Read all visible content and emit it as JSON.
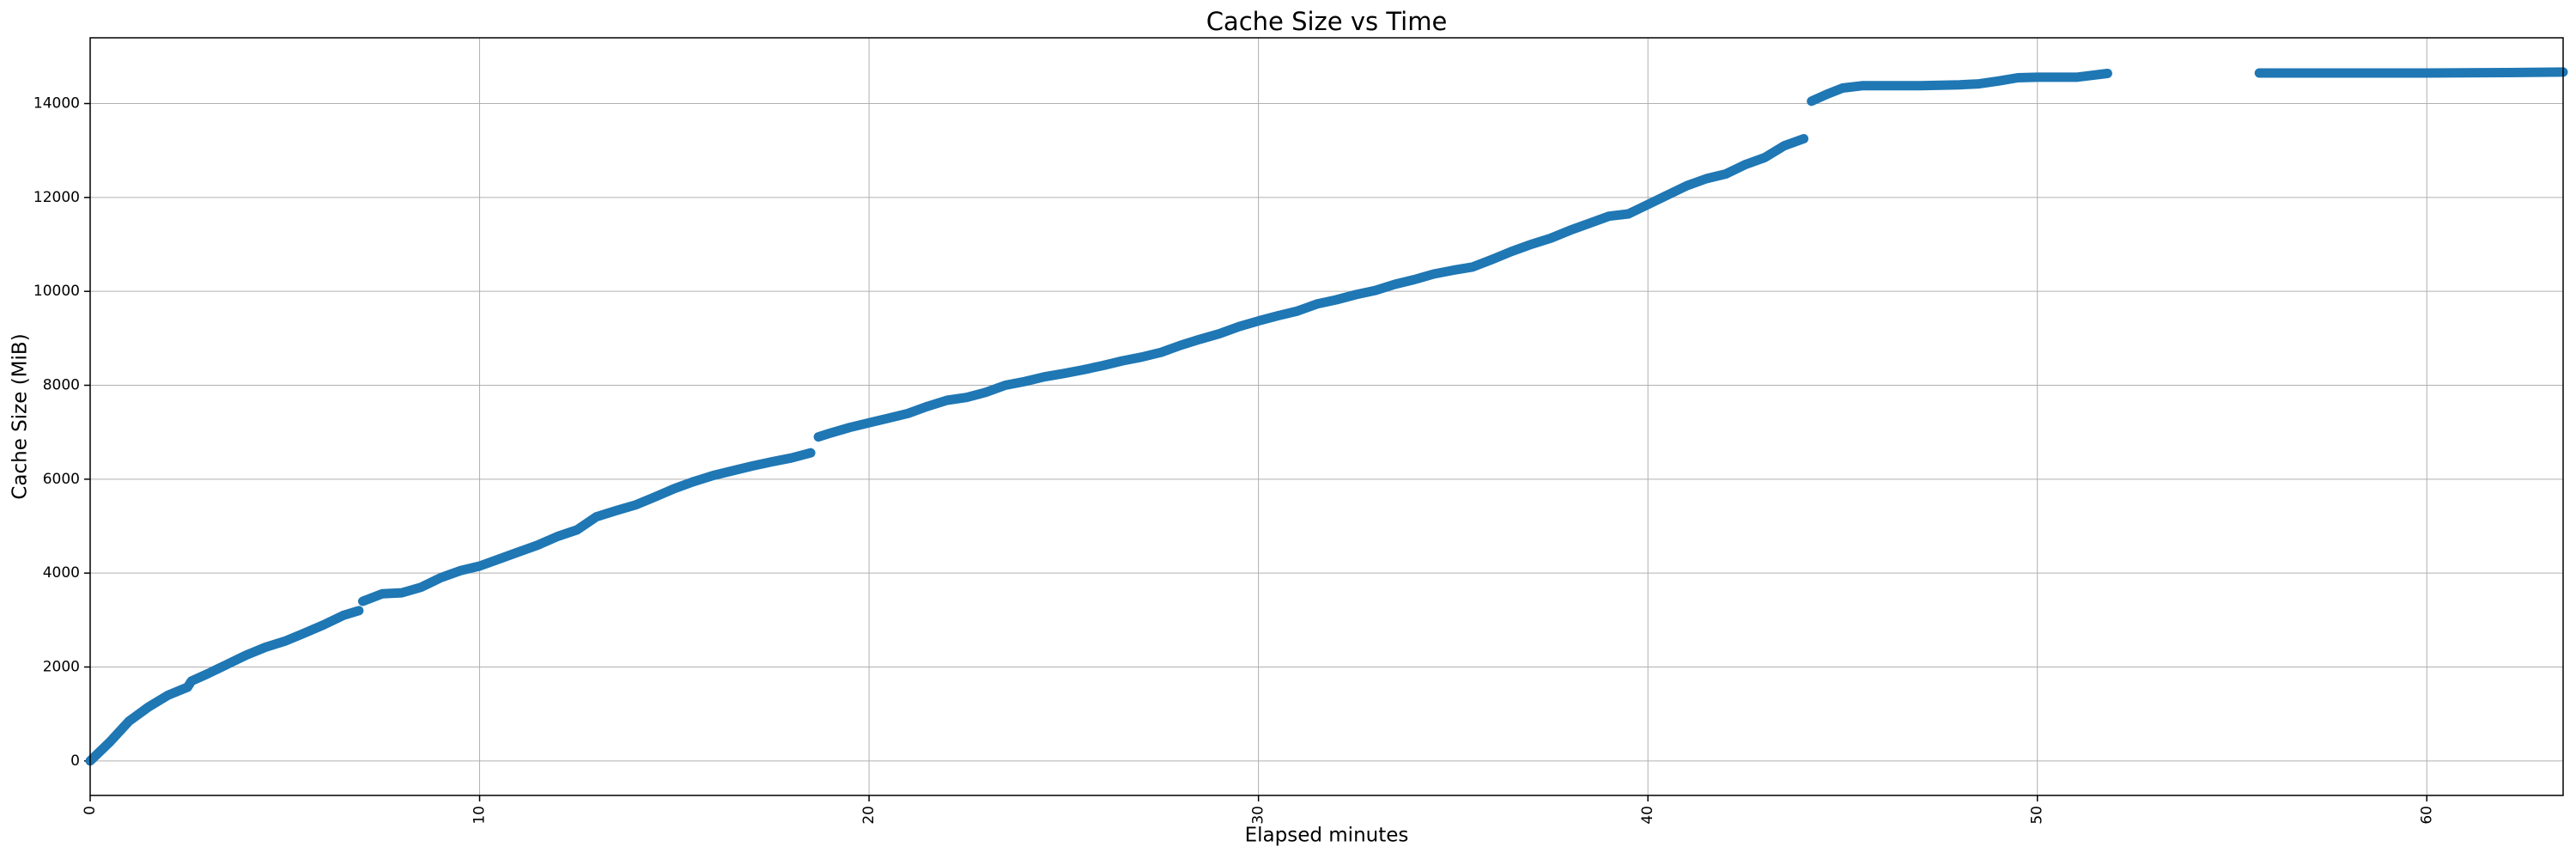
{
  "chart_data": {
    "type": "line",
    "title": "Cache Size vs Time",
    "x_label": "Elapsed minutes",
    "y_label": "Cache Size (MiB)",
    "x": [
      0,
      0.5,
      1,
      1.5,
      2,
      2.5,
      2.6,
      3,
      3.5,
      4,
      4.5,
      5,
      5.5,
      6,
      6.5,
      6.9,
      6.95,
      7,
      7.5,
      8,
      8.5,
      9,
      9.5,
      10,
      10.5,
      11,
      11.5,
      12,
      12.5,
      13,
      13.5,
      14,
      14.5,
      15,
      15.5,
      16,
      16.5,
      17,
      17.5,
      18,
      18.5,
      18.6,
      18.7,
      19,
      19.5,
      20,
      20.5,
      21,
      21.5,
      22,
      22.5,
      23,
      23.5,
      24,
      24.5,
      25,
      25.5,
      26,
      26.5,
      27,
      27.5,
      28,
      28.5,
      29,
      29.5,
      30,
      30.5,
      31,
      31.5,
      32,
      32.5,
      33,
      33.5,
      34,
      34.5,
      35,
      35.5,
      36,
      36.5,
      37,
      37.5,
      38,
      38.5,
      39,
      39.5,
      40,
      40.5,
      41,
      41.5,
      42,
      42.5,
      43,
      43.5,
      44,
      44.1,
      44.2,
      44.6,
      45,
      45.5,
      46,
      47,
      48,
      48.5,
      49,
      49.5,
      50,
      51,
      51.8,
      53,
      55.7,
      58,
      60,
      62,
      63.5
    ],
    "series": [
      {
        "name": "Cache Size",
        "color": "#1f77b4",
        "values": [
          0,
          400,
          850,
          1150,
          1400,
          1570,
          1700,
          1850,
          2050,
          2250,
          2420,
          2550,
          2720,
          2900,
          3100,
          3200,
          null,
          3400,
          3560,
          3580,
          3700,
          3900,
          4050,
          4150,
          4300,
          4450,
          4600,
          4780,
          4920,
          5200,
          5330,
          5450,
          5620,
          5800,
          5950,
          6080,
          6180,
          6280,
          6370,
          6450,
          6560,
          null,
          6900,
          6980,
          7100,
          7200,
          7300,
          7400,
          7550,
          7680,
          7740,
          7850,
          8000,
          8080,
          8180,
          8250,
          8330,
          8420,
          8520,
          8600,
          8700,
          8850,
          8980,
          9100,
          9250,
          9370,
          9480,
          9580,
          9730,
          9820,
          9930,
          10020,
          10150,
          10250,
          10370,
          10450,
          10520,
          10680,
          10850,
          11000,
          11130,
          11300,
          11450,
          11600,
          11650,
          11850,
          12050,
          12250,
          12400,
          12500,
          12700,
          12850,
          13100,
          13250,
          null,
          14050,
          14200,
          14330,
          14380,
          14380,
          14380,
          14400,
          14420,
          14480,
          14550,
          14560,
          14560,
          14640,
          null,
          14650,
          14650,
          14650,
          14660,
          14670
        ]
      }
    ],
    "xlim": [
      0,
      63.5
    ],
    "ylim": [
      -735,
      15400
    ],
    "xticks": [
      0,
      10,
      20,
      30,
      40,
      50,
      60
    ],
    "yticks": [
      0,
      2000,
      4000,
      6000,
      8000,
      10000,
      12000,
      14000
    ],
    "grid": true
  }
}
